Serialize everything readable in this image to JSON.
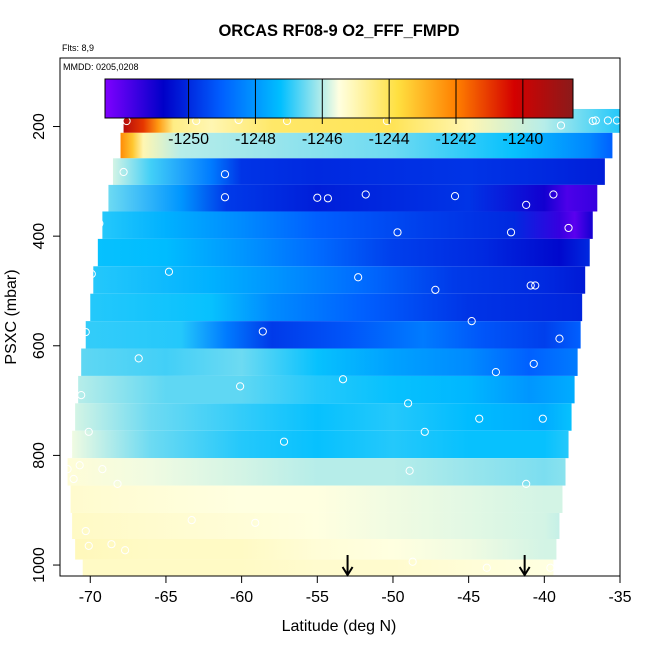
{
  "chart_data": {
    "type": "heatmap",
    "title": "ORCAS RF08-9 O2_FFF_FMPD",
    "annotations": [
      "Flts: 8,9",
      "MMDD: 0205,0208"
    ],
    "xlabel": "Latitude (deg N)",
    "ylabel": "PSXC (mbar)",
    "xlim": [
      -72,
      -35
    ],
    "ylim": [
      1020,
      75
    ],
    "x_ticks": [
      -70,
      -65,
      -60,
      -55,
      -50,
      -45,
      -40,
      -35
    ],
    "y_ticks": [
      200,
      400,
      600,
      800,
      1000
    ],
    "colorbar": {
      "range": [
        -1252.5,
        -1238.5
      ],
      "ticks": [
        -1250,
        -1248,
        -1246,
        -1244,
        -1242,
        -1240
      ],
      "colors": [
        "#7f00ff",
        "#0000c8",
        "#0060ff",
        "#00bfff",
        "#ffffe0",
        "#ffe040",
        "#ff8000",
        "#d40000",
        "#8b1a1a"
      ]
    },
    "rows": [
      {
        "p": 190,
        "lat_min": -67.8,
        "lat_max": -35.0,
        "stops": [
          [
            -67.8,
            -1239.5
          ],
          [
            -66.5,
            -1241.0
          ],
          [
            -65.5,
            -1242.5
          ],
          [
            -64.5,
            -1244.5
          ],
          [
            -62,
            -1245.0
          ],
          [
            -58,
            -1244.2
          ],
          [
            -50,
            -1244.0
          ],
          [
            -45,
            -1245.0
          ],
          [
            -40,
            -1246.0
          ],
          [
            -35,
            -1247.0
          ]
        ]
      },
      {
        "p": 233,
        "lat_min": -68.0,
        "lat_max": -35.5,
        "stops": [
          [
            -68.0,
            -1242.2
          ],
          [
            -67.2,
            -1243.3
          ],
          [
            -66.5,
            -1245.0
          ],
          [
            -64,
            -1246.0
          ],
          [
            -58,
            -1246.2
          ],
          [
            -50,
            -1246.5
          ],
          [
            -42,
            -1247.2
          ],
          [
            -37,
            -1248.3
          ],
          [
            -35.5,
            -1249.0
          ]
        ]
      },
      {
        "p": 283,
        "lat_min": -68.5,
        "lat_max": -36.0,
        "stops": [
          [
            -68.5,
            -1245.8
          ],
          [
            -66,
            -1246.8
          ],
          [
            -62,
            -1248.5
          ],
          [
            -60,
            -1249.8
          ],
          [
            -55,
            -1250.0
          ],
          [
            -45,
            -1249.8
          ],
          [
            -40,
            -1250.0
          ],
          [
            -36,
            -1250.2
          ]
        ]
      },
      {
        "p": 330,
        "lat_min": -68.8,
        "lat_max": -36.5,
        "stops": [
          [
            -68.8,
            -1246.5
          ],
          [
            -64,
            -1248.0
          ],
          [
            -61,
            -1249.7
          ],
          [
            -55,
            -1250.2
          ],
          [
            -45,
            -1249.8
          ],
          [
            -40,
            -1251.0
          ],
          [
            -38.5,
            -1251.8
          ],
          [
            -36.5,
            -1251.5
          ]
        ]
      },
      {
        "p": 380,
        "lat_min": -69.2,
        "lat_max": -36.8,
        "stops": [
          [
            -69.2,
            -1247.0
          ],
          [
            -65,
            -1247.5
          ],
          [
            -60,
            -1248.2
          ],
          [
            -55,
            -1249.0
          ],
          [
            -48,
            -1249.6
          ],
          [
            -42,
            -1250.0
          ],
          [
            -39,
            -1251.5
          ],
          [
            -38,
            -1252.0
          ],
          [
            -36.8,
            -1251.0
          ]
        ]
      },
      {
        "p": 430,
        "lat_min": -69.5,
        "lat_max": -37.0,
        "stops": [
          [
            -69.5,
            -1247.2
          ],
          [
            -65,
            -1247.3
          ],
          [
            -60,
            -1248.0
          ],
          [
            -55,
            -1248.8
          ],
          [
            -50,
            -1249.6
          ],
          [
            -44,
            -1250.0
          ],
          [
            -39,
            -1250.6
          ],
          [
            -37,
            -1250.0
          ]
        ]
      },
      {
        "p": 480,
        "lat_min": -69.8,
        "lat_max": -37.3,
        "stops": [
          [
            -69.8,
            -1247.0
          ],
          [
            -62,
            -1247.5
          ],
          [
            -58,
            -1248.0
          ],
          [
            -52,
            -1248.8
          ],
          [
            -46,
            -1249.7
          ],
          [
            -40,
            -1250.0
          ],
          [
            -37.3,
            -1250.3
          ]
        ]
      },
      {
        "p": 530,
        "lat_min": -70.0,
        "lat_max": -37.5,
        "stops": [
          [
            -70.0,
            -1247.0
          ],
          [
            -62,
            -1247.2
          ],
          [
            -58,
            -1248.2
          ],
          [
            -52,
            -1249.0
          ],
          [
            -45,
            -1249.8
          ],
          [
            -40,
            -1250.0
          ],
          [
            -37.5,
            -1250.1
          ]
        ]
      },
      {
        "p": 580,
        "lat_min": -70.3,
        "lat_max": -37.6,
        "stops": [
          [
            -70.3,
            -1246.9
          ],
          [
            -64,
            -1247.0
          ],
          [
            -61,
            -1248.5
          ],
          [
            -58,
            -1249.7
          ],
          [
            -53,
            -1249.2
          ],
          [
            -48,
            -1248.5
          ],
          [
            -44,
            -1249.2
          ],
          [
            -40,
            -1249.6
          ],
          [
            -37.6,
            -1249.0
          ]
        ]
      },
      {
        "p": 630,
        "lat_min": -70.6,
        "lat_max": -37.8,
        "stops": [
          [
            -70.6,
            -1246.6
          ],
          [
            -65,
            -1246.8
          ],
          [
            -60,
            -1246.5
          ],
          [
            -55,
            -1247.2
          ],
          [
            -50,
            -1247.8
          ],
          [
            -45,
            -1248.2
          ],
          [
            -41,
            -1249.0
          ],
          [
            -37.8,
            -1248.5
          ]
        ]
      },
      {
        "p": 680,
        "lat_min": -70.8,
        "lat_max": -38.0,
        "stops": [
          [
            -70.8,
            -1246.0
          ],
          [
            -65,
            -1246.6
          ],
          [
            -60,
            -1246.6
          ],
          [
            -55,
            -1247.0
          ],
          [
            -50,
            -1247.2
          ],
          [
            -45,
            -1247.4
          ],
          [
            -41,
            -1248.0
          ],
          [
            -38,
            -1247.6
          ]
        ]
      },
      {
        "p": 730,
        "lat_min": -71.0,
        "lat_max": -38.2,
        "stops": [
          [
            -71.0,
            -1245.8
          ],
          [
            -66,
            -1246.5
          ],
          [
            -60,
            -1246.9
          ],
          [
            -55,
            -1247.2
          ],
          [
            -50,
            -1247.0
          ],
          [
            -45,
            -1247.3
          ],
          [
            -40,
            -1247.6
          ],
          [
            -38.2,
            -1247.2
          ]
        ]
      },
      {
        "p": 780,
        "lat_min": -71.2,
        "lat_max": -38.4,
        "stops": [
          [
            -71.2,
            -1245.6
          ],
          [
            -66,
            -1246.5
          ],
          [
            -60,
            -1247.0
          ],
          [
            -55,
            -1247.2
          ],
          [
            -50,
            -1247.0
          ],
          [
            -45,
            -1247.2
          ],
          [
            -40,
            -1247.2
          ],
          [
            -38.4,
            -1247.0
          ]
        ]
      },
      {
        "p": 830,
        "lat_min": -71.5,
        "lat_max": -38.6,
        "stops": [
          [
            -71.5,
            -1245.4
          ],
          [
            -66,
            -1245.6
          ],
          [
            -60,
            -1245.8
          ],
          [
            -55,
            -1246.0
          ],
          [
            -50,
            -1246.0
          ],
          [
            -45,
            -1246.2
          ],
          [
            -40,
            -1246.4
          ],
          [
            -38.6,
            -1246.3
          ]
        ]
      },
      {
        "p": 880,
        "lat_min": -71.3,
        "lat_max": -38.8,
        "stops": [
          [
            -71.3,
            -1245.3
          ],
          [
            -66,
            -1245.4
          ],
          [
            -60,
            -1245.5
          ],
          [
            -55,
            -1245.5
          ],
          [
            -50,
            -1245.6
          ],
          [
            -45,
            -1245.7
          ],
          [
            -40,
            -1245.8
          ],
          [
            -38.8,
            -1245.8
          ]
        ]
      },
      {
        "p": 930,
        "lat_min": -71.2,
        "lat_max": -39.0,
        "stops": [
          [
            -71.2,
            -1245.2
          ],
          [
            -66,
            -1245.3
          ],
          [
            -60,
            -1245.4
          ],
          [
            -55,
            -1245.5
          ],
          [
            -50,
            -1245.6
          ],
          [
            -45,
            -1245.7
          ],
          [
            -40,
            -1245.8
          ],
          [
            -39,
            -1245.9
          ]
        ]
      },
      {
        "p": 975,
        "lat_min": -71.0,
        "lat_max": -39.2,
        "stops": [
          [
            -71.0,
            -1245.1
          ],
          [
            -66,
            -1245.2
          ],
          [
            -60,
            -1245.2
          ],
          [
            -55,
            -1245.4
          ],
          [
            -50,
            -1245.5
          ],
          [
            -45,
            -1245.6
          ],
          [
            -40,
            -1245.8
          ],
          [
            -39.2,
            -1245.8
          ]
        ]
      },
      {
        "p": 1005,
        "lat_min": -70.5,
        "lat_max": -39.4,
        "stops": [
          [
            -70.5,
            -1245.2
          ],
          [
            -65,
            -1245.2
          ],
          [
            -60,
            -1245.2
          ],
          [
            -55,
            -1245.3
          ],
          [
            -50,
            -1245.3
          ],
          [
            -45,
            -1245.4
          ],
          [
            -40,
            -1245.5
          ],
          [
            -39.4,
            -1245.5
          ]
        ]
      }
    ],
    "points": [
      [
        -67.6,
        190
      ],
      [
        -63,
        190
      ],
      [
        -60.2,
        188
      ],
      [
        -57,
        190
      ],
      [
        -50.4,
        190
      ],
      [
        -38.9,
        198
      ],
      [
        -36.8,
        190
      ],
      [
        -36.6,
        189
      ],
      [
        -35.8,
        189
      ],
      [
        -35.2,
        189
      ],
      [
        -67.8,
        283
      ],
      [
        -61.1,
        287
      ],
      [
        -61.1,
        329
      ],
      [
        -55,
        330
      ],
      [
        -54.3,
        331
      ],
      [
        -51.8,
        324
      ],
      [
        -45.9,
        327
      ],
      [
        -41.2,
        343
      ],
      [
        -39.4,
        324
      ],
      [
        -69.4,
        377
      ],
      [
        -49.7,
        393
      ],
      [
        -42.2,
        393
      ],
      [
        -38.4,
        385
      ],
      [
        -64.8,
        465
      ],
      [
        -52.3,
        475
      ],
      [
        -47.2,
        498
      ],
      [
        -40.9,
        490
      ],
      [
        -40.6,
        490
      ],
      [
        -69.9,
        469
      ],
      [
        -70.3,
        575
      ],
      [
        -58.6,
        574
      ],
      [
        -44.8,
        555
      ],
      [
        -39.0,
        587
      ],
      [
        -66.8,
        623
      ],
      [
        -60.1,
        674
      ],
      [
        -53.3,
        661
      ],
      [
        -43.2,
        648
      ],
      [
        -40.7,
        633
      ],
      [
        -70.6,
        690
      ],
      [
        -70.1,
        757
      ],
      [
        -57.2,
        775
      ],
      [
        -49.0,
        705
      ],
      [
        -47.9,
        757
      ],
      [
        -44.3,
        733
      ],
      [
        -40.1,
        733
      ],
      [
        -71.5,
        825
      ],
      [
        -71.1,
        843
      ],
      [
        -70.7,
        818
      ],
      [
        -69.2,
        825
      ],
      [
        -68.2,
        852
      ],
      [
        -48.9,
        828
      ],
      [
        -41.2,
        852
      ],
      [
        -70.3,
        938
      ],
      [
        -71.5,
        949
      ],
      [
        -63.3,
        918
      ],
      [
        -59.1,
        923
      ],
      [
        -70.1,
        965
      ],
      [
        -68.6,
        962
      ],
      [
        -67.7,
        973
      ],
      [
        -48.7,
        994
      ],
      [
        -43.8,
        1005
      ],
      [
        -39.6,
        1005
      ]
    ],
    "arrows": [
      -53.0,
      -41.3
    ]
  }
}
